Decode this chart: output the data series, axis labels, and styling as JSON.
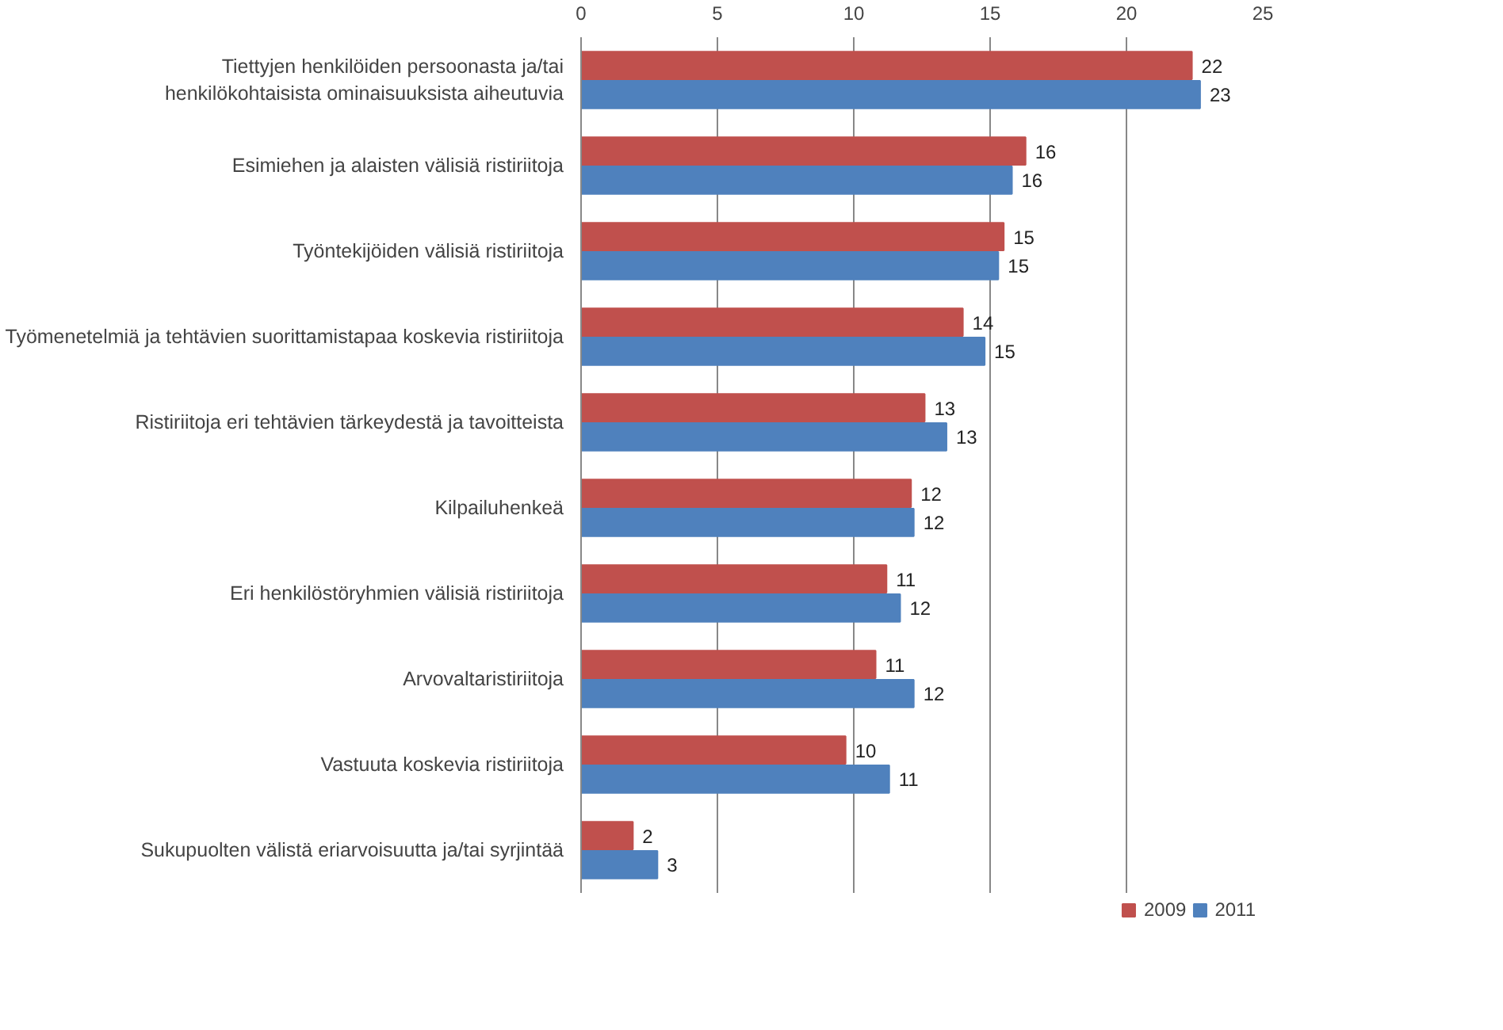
{
  "chart_data": {
    "type": "bar",
    "orientation": "horizontal",
    "categories": [
      "Tiettyjen henkilöiden persoonasta ja/tai henkilökohtaisista ominaisuuksista aiheutuvia",
      "Esimiehen ja alaisten välisiä ristiriitoja",
      "Työntekijöiden välisiä ristiriitoja",
      "Työmenetelmiä ja tehtävien suorittamistapaa koskevia ristiriitoja",
      "Ristiriitoja eri tehtävien tärkeydestä ja tavoitteista",
      "Kilpailuhenkeä",
      "Eri henkilöstöryhmien välisiä ristiriitoja",
      "Arvovaltaristiriitoja",
      "Vastuuta koskevia ristiriitoja",
      "Sukupuolten välistä eriarvoisuutta ja/tai syrjintää"
    ],
    "series": [
      {
        "name": "2009",
        "color": "#c0504d",
        "values": [
          22.4,
          16.3,
          15.5,
          14.0,
          12.6,
          12.1,
          11.2,
          10.8,
          9.7,
          1.9
        ],
        "value_labels": [
          "22",
          "16",
          "15",
          "14",
          "13",
          "12",
          "11",
          "11",
          "10",
          "2"
        ]
      },
      {
        "name": "2011",
        "color": "#4f81bd",
        "values": [
          22.7,
          15.8,
          15.3,
          14.8,
          13.4,
          12.2,
          11.7,
          12.2,
          11.3,
          2.8
        ],
        "value_labels": [
          "23",
          "16",
          "15",
          "15",
          "13",
          "12",
          "12",
          "12",
          "11",
          "3"
        ]
      }
    ],
    "xlim": [
      0,
      25
    ],
    "xticks": [
      0,
      5,
      10,
      15,
      20,
      25
    ],
    "grid": "x",
    "legend": "bottom"
  }
}
